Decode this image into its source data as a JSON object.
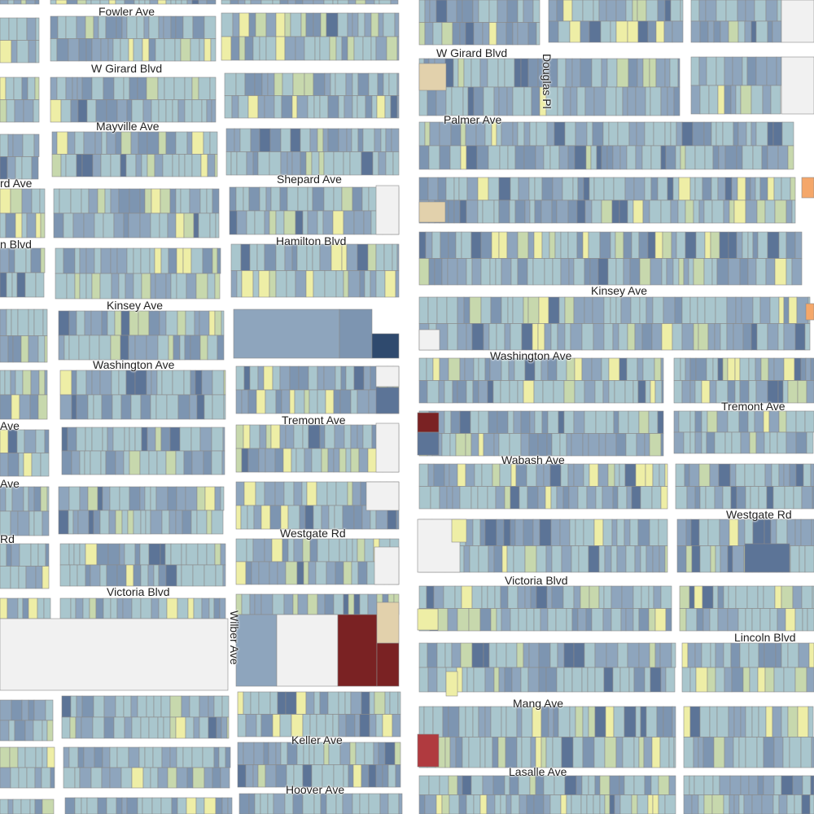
{
  "map": {
    "street_labels": {
      "fowler": "Fowler Ave",
      "girard_w": "W Girard Blvd",
      "girard_e": "W Girard Blvd",
      "douglas": "Douglas Pl",
      "mayville": "Mayville Ave",
      "palmer": "Palmer Ave",
      "shepard_w": "rd Ave",
      "shepard": "Shepard Ave",
      "hamilton_w": "n Blvd",
      "hamilton": "Hamilton Blvd",
      "kinsey_w": "Kinsey Ave",
      "kinsey_e": "Kinsey Ave",
      "washington_w": "Washington Ave",
      "washington_e": "Washington Ave",
      "tremont_w": "Ave",
      "tremont": "Tremont Ave",
      "tremont_e": "Tremont Ave",
      "wabash_w": "Ave",
      "wabash": "Wabash Ave",
      "westgate_w": "Rd",
      "westgate": "Westgate Rd",
      "westgate_e": "Westgate Rd",
      "victoria_w": "Victoria Blvd",
      "victoria_e": "Victoria Blvd",
      "wilber": "Wilber Ave",
      "lincoln": "Lincoln Blvd",
      "mang": "Mang Ave",
      "keller": "Keller Ave",
      "lasalle": "Lasalle Ave",
      "hoover": "Hoover Ave"
    },
    "colors": {
      "background": "#ffffff",
      "open_lot": "#f1f1f1",
      "light_blue": "#a9c6cd",
      "slate_blue": "#8ea5bd",
      "mid_blue": "#7d95b1",
      "dark_blue": "#5c7497",
      "navy": "#2f4a6e",
      "pale_green": "#c7d8ad",
      "pale_yellow": "#eeeea6",
      "tan": "#e2d1ac",
      "orange": "#f4a76a",
      "maroon": "#7a2223",
      "red": "#b03a3f"
    }
  }
}
